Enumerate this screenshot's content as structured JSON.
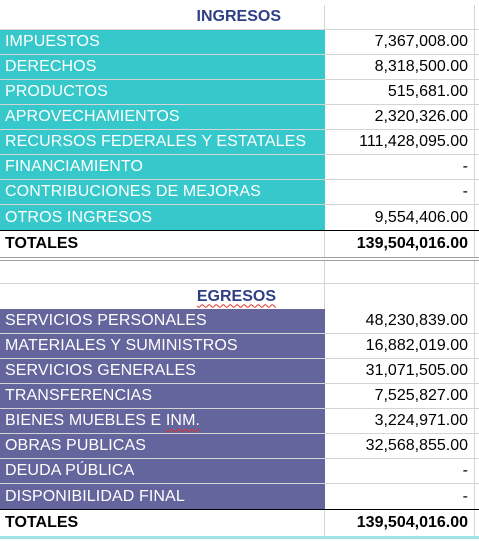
{
  "ingresos": {
    "title": "INGRESOS",
    "rows": [
      {
        "label": "IMPUESTOS",
        "value": "7,367,008.00"
      },
      {
        "label": "DERECHOS",
        "value": "8,318,500.00"
      },
      {
        "label": "PRODUCTOS",
        "value": "515,681.00"
      },
      {
        "label": "APROVECHAMIENTOS",
        "value": "2,320,326.00"
      },
      {
        "label": "RECURSOS FEDERALES Y ESTATALES",
        "value": "111,428,095.00"
      },
      {
        "label": "FINANCIAMIENTO",
        "value": "-"
      },
      {
        "label": "CONTRIBUCIONES DE MEJORAS",
        "value": "-"
      },
      {
        "label": "OTROS INGRESOS",
        "value": "9,554,406.00"
      }
    ],
    "total_label": "TOTALES",
    "total_value": "139,504,016.00"
  },
  "egresos": {
    "title": "EGRESOS",
    "rows": [
      {
        "label": "SERVICIOS PERSONALES",
        "value": "48,230,839.00"
      },
      {
        "label": "MATERIALES Y SUMINISTROS",
        "value": "16,882,019.00"
      },
      {
        "label": "SERVICIOS GENERALES",
        "value": "31,071,505.00"
      },
      {
        "label": "TRANSFERENCIAS",
        "value": "7,525,827.00"
      },
      {
        "label": "BIENES MUEBLES E ",
        "label_underlined": "INM.",
        "value": "3,224,971.00"
      },
      {
        "label": "OBRAS PUBLICAS",
        "value": "32,568,855.00"
      },
      {
        "label": "DEUDA PÚBLICA",
        "value": "-"
      },
      {
        "label": "DISPONIBILIDAD FINAL",
        "value": "-"
      }
    ],
    "total_label": "TOTALES",
    "total_value": "139,504,016.00"
  },
  "colors": {
    "ingresos_fill": "#36c8cb",
    "egresos_fill": "#65659d",
    "title_text": "#2f3f86"
  }
}
